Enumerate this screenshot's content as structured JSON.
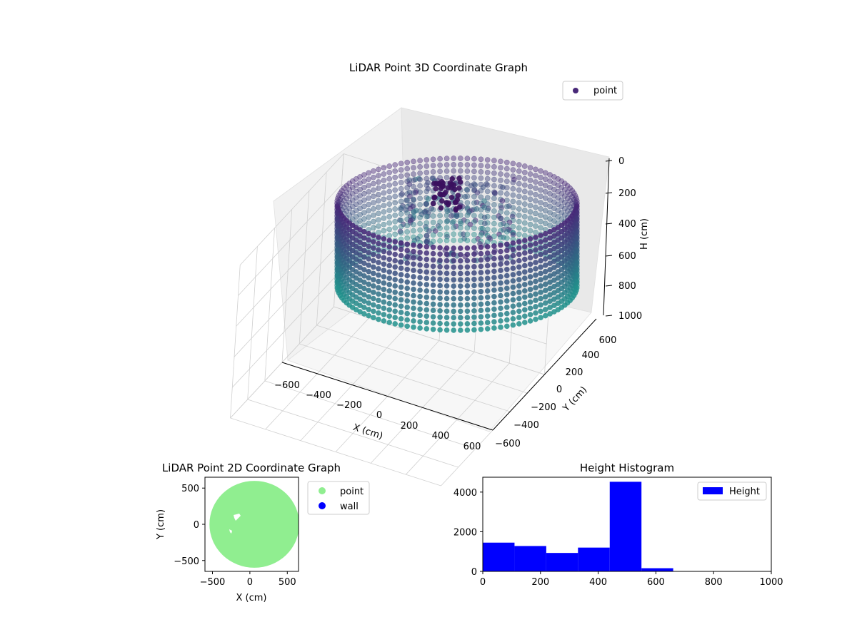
{
  "chart_data": [
    {
      "type": "scatter",
      "projection": "3d",
      "title": "LiDAR Point 3D Coordinate Graph",
      "xlabel": "X (cm)",
      "ylabel": "Y (cm)",
      "zlabel": "H (cm)",
      "xticks": [
        -600,
        -400,
        -200,
        0,
        200,
        400,
        600
      ],
      "yticks": [
        -600,
        -400,
        -200,
        0,
        200,
        400,
        600
      ],
      "zticks": [
        0,
        200,
        400,
        600,
        800,
        1000
      ],
      "xlim": [
        -600,
        600
      ],
      "ylim": [
        -600,
        600
      ],
      "zlim": [
        1000,
        0
      ],
      "z_inverted": true,
      "grid": true,
      "legend": {
        "position": "top-right",
        "entries": [
          "point"
        ]
      },
      "colormap": "viridis",
      "series": [
        {
          "name": "point",
          "shape": "cylindrical wall",
          "radius_cm": 560,
          "height_range_cm": [
            230,
            800
          ],
          "interior_points": "scattered points near the center, height about 200-600"
        }
      ],
      "colors": {
        "legend_marker": "#482878",
        "wall_top": "#472c7a",
        "wall_bottom": "#21918c"
      }
    },
    {
      "type": "scatter",
      "title": "LiDAR Point 2D Coordinate Graph",
      "xlabel": "X (cm)",
      "ylabel": "Y (cm)",
      "xticks": [
        -500,
        0,
        500
      ],
      "yticks": [
        500,
        0,
        -500
      ],
      "xlim": [
        -600,
        650
      ],
      "ylim": [
        -650,
        650
      ],
      "legend": {
        "position": "outside-right",
        "entries": [
          "point",
          "wall"
        ]
      },
      "series": [
        {
          "name": "point",
          "color": "#90ee90",
          "shape": "filled disc",
          "center": [
            60,
            0
          ],
          "radius_cm": 600
        },
        {
          "name": "wall",
          "color": "#0000ff"
        }
      ]
    },
    {
      "type": "histogram",
      "title": "Height Histogram",
      "xticks": [
        0,
        200,
        400,
        600,
        800,
        1000
      ],
      "yticks": [
        0,
        2000,
        4000
      ],
      "xlim": [
        0,
        1000
      ],
      "ylim": [
        0,
        4750
      ],
      "legend": {
        "position": "top-right",
        "entries": [
          "Height"
        ]
      },
      "color": "#0000ff",
      "series": [
        {
          "name": "Height",
          "bins": [
            0,
            110,
            220,
            330,
            440,
            550,
            660,
            770,
            880,
            990
          ],
          "values": [
            1450,
            1280,
            930,
            1200,
            4520,
            160,
            0,
            0,
            0
          ]
        }
      ]
    }
  ]
}
